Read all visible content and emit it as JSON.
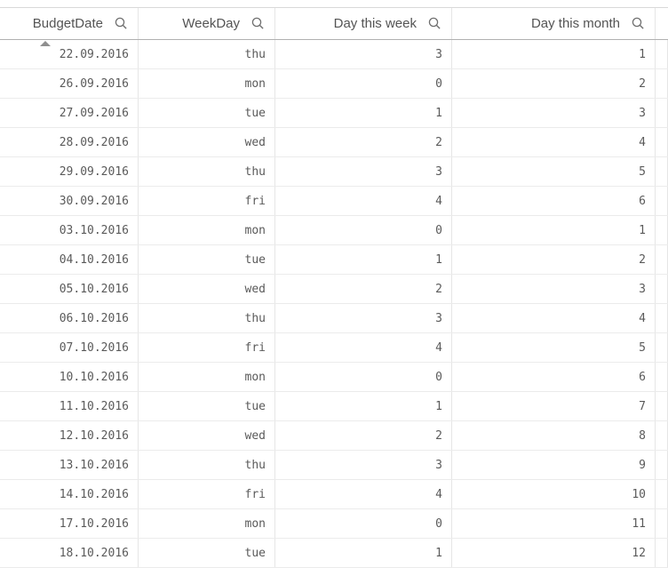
{
  "table": {
    "columns": [
      {
        "label": "BudgetDate",
        "sorted": "ascending"
      },
      {
        "label": "WeekDay",
        "sorted": ""
      },
      {
        "label": "Day this week",
        "sorted": ""
      },
      {
        "label": "Day this month",
        "sorted": ""
      }
    ],
    "rows": [
      [
        "22.09.2016",
        "thu",
        "3",
        "1"
      ],
      [
        "26.09.2016",
        "mon",
        "0",
        "2"
      ],
      [
        "27.09.2016",
        "tue",
        "1",
        "3"
      ],
      [
        "28.09.2016",
        "wed",
        "2",
        "4"
      ],
      [
        "29.09.2016",
        "thu",
        "3",
        "5"
      ],
      [
        "30.09.2016",
        "fri",
        "4",
        "6"
      ],
      [
        "03.10.2016",
        "mon",
        "0",
        "1"
      ],
      [
        "04.10.2016",
        "tue",
        "1",
        "2"
      ],
      [
        "05.10.2016",
        "wed",
        "2",
        "3"
      ],
      [
        "06.10.2016",
        "thu",
        "3",
        "4"
      ],
      [
        "07.10.2016",
        "fri",
        "4",
        "5"
      ],
      [
        "10.10.2016",
        "mon",
        "0",
        "6"
      ],
      [
        "11.10.2016",
        "tue",
        "1",
        "7"
      ],
      [
        "12.10.2016",
        "wed",
        "2",
        "8"
      ],
      [
        "13.10.2016",
        "thu",
        "3",
        "9"
      ],
      [
        "14.10.2016",
        "fri",
        "4",
        "10"
      ],
      [
        "17.10.2016",
        "mon",
        "0",
        "11"
      ],
      [
        "18.10.2016",
        "tue",
        "1",
        "12"
      ]
    ]
  },
  "icons": {
    "header_search": "search-icon",
    "sort_indicator": "sort-ascending-icon"
  },
  "colors": {
    "background": "#ffffff",
    "header_text": "#545454",
    "cell_text": "#5a5a5a",
    "top_border": "#d9d9d9",
    "header_bottom_border": "#b0b0b0",
    "row_border": "#ebebeb",
    "column_border": "#e6e6e6",
    "search_icon": "#6e6e6e",
    "sort_arrow": "#8f8f8f"
  }
}
